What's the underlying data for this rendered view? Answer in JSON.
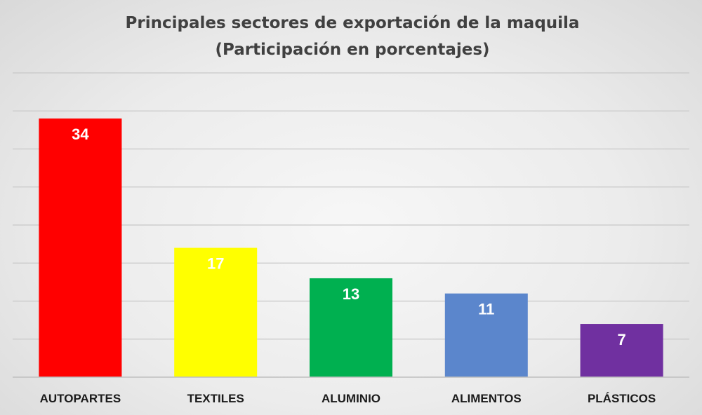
{
  "chart_data": {
    "type": "bar",
    "title": "Principales sectores de exportación de la maquila",
    "subtitle": "(Participación en porcentajes)",
    "categories": [
      "AUTOPARTES",
      "TEXTILES",
      "ALUMINIO",
      "ALIMENTOS",
      "PLÁSTICOS"
    ],
    "values": [
      34,
      17,
      13,
      11,
      7
    ],
    "colors": [
      "#ff0000",
      "#ffff00",
      "#00b050",
      "#5b86cc",
      "#7030a0"
    ],
    "ylim": [
      0,
      40
    ],
    "grid": true,
    "gridlines_at": [
      5,
      10,
      15,
      20,
      25,
      30,
      35,
      40
    ],
    "xlabel": "",
    "ylabel": "",
    "legend": "none"
  }
}
